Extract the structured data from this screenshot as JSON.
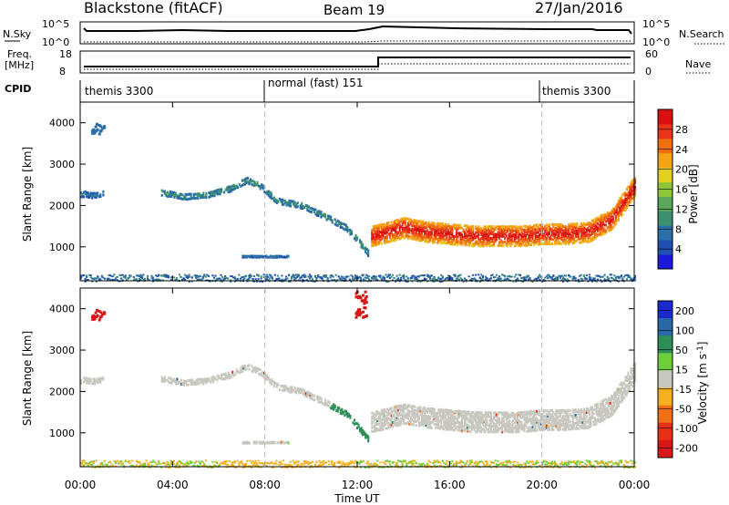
{
  "header": {
    "station": "Blackstone (fitACF)",
    "beam": "Beam 19",
    "date": "27/Jan/2016"
  },
  "noise_panel": {
    "left_label": "N.Sky",
    "left_ticks": [
      "10^5",
      "10^0"
    ],
    "right_label": "N.Search",
    "right_ticks": [
      "10^5",
      "10^0"
    ]
  },
  "freq_panel": {
    "left_label_top": "Freq.",
    "left_label_bottom": "[MHz]",
    "left_ticks": [
      "18",
      "8"
    ],
    "right_label": "Nave",
    "right_ticks": [
      "60",
      "0"
    ]
  },
  "cpid": {
    "label": "CPID",
    "segments": [
      {
        "text": "themis 3300",
        "start_hour": 0,
        "end_hour": 8
      },
      {
        "text": "normal (fast) 151",
        "start_hour": 8,
        "end_hour": 20
      },
      {
        "text": "themis 3300",
        "start_hour": 20,
        "end_hour": 24
      }
    ]
  },
  "chart_data": [
    {
      "type": "heatmap",
      "name": "power",
      "ylabel": "Slant Range [km]",
      "ylim": [
        180,
        4500
      ],
      "yticks": [
        1000,
        2000,
        3000,
        4000
      ],
      "xlim": [
        0,
        24
      ],
      "colorbar": {
        "label": "Power [dB]",
        "min": 0,
        "max": 32,
        "ticks": [
          4,
          8,
          12,
          16,
          20,
          24,
          28
        ],
        "tick_labels": [
          "4",
          "8",
          "12",
          "16",
          "20",
          "24",
          "28"
        ],
        "colors": [
          "#1a1ad8",
          "#1f4fb0",
          "#2a6fa8",
          "#3c8f70",
          "#5aa65a",
          "#8fc53a",
          "#e0d020",
          "#f5a415",
          "#f07010",
          "#e83418",
          "#d81010"
        ]
      },
      "echo_bands": [
        {
          "hours": [
            0.0,
            0.2,
            0.5,
            0.8,
            1.0
          ],
          "range_km": [
            2300,
            2320,
            2280,
            2300,
            2350
          ],
          "width_km": 150,
          "power_db": 6
        },
        {
          "hours": [
            3.5,
            4.5,
            5.5,
            6.5,
            7.2,
            7.8,
            8.5,
            9.5,
            10.5,
            11.5,
            12.0,
            12.5
          ],
          "range_km": [
            2350,
            2250,
            2300,
            2450,
            2650,
            2500,
            2150,
            2050,
            1800,
            1500,
            1200,
            850
          ],
          "width_km": 150,
          "power_db": 8
        },
        {
          "hours": [
            12.6,
            13.0,
            14.0,
            15.0,
            16.0,
            17.0,
            18.0,
            19.0,
            20.0,
            21.0,
            22.0,
            23.0,
            23.5,
            24.0
          ],
          "range_km": [
            1300,
            1350,
            1500,
            1400,
            1350,
            1300,
            1300,
            1300,
            1350,
            1350,
            1400,
            1700,
            2100,
            2500
          ],
          "width_km": 500,
          "power_db": 22
        },
        {
          "hours": [
            7.0,
            8.0,
            9.0
          ],
          "range_km": [
            800,
            800,
            800
          ],
          "width_km": 40,
          "power_db": 6
        }
      ],
      "ground_scatter_km": [
        180,
        350
      ]
    },
    {
      "type": "heatmap",
      "name": "velocity",
      "ylabel": "Slant Range [km]",
      "ylim": [
        180,
        4500
      ],
      "yticks": [
        1000,
        2000,
        3000,
        4000
      ],
      "xlim": [
        0,
        24
      ],
      "xticks": [
        0,
        4,
        8,
        12,
        16,
        20,
        24
      ],
      "xtick_labels": [
        "00:00",
        "04:00",
        "08:00",
        "12:00",
        "16:00",
        "20:00",
        "00:00"
      ],
      "xlabel": "Time UT",
      "colorbar": {
        "label": "Velocity [m s^-1]",
        "tick_labels": [
          "200",
          "100",
          "50",
          "15",
          "-15",
          "-50",
          "-100",
          "-200"
        ],
        "colors": [
          "#1a2acc",
          "#2a68a8",
          "#2d8f58",
          "#6fcf3a",
          "#c8c8c0",
          "#f5b020",
          "#f07018",
          "#e53018",
          "#d81818"
        ]
      },
      "velocity_regions": [
        {
          "hours": [
            0,
            24
          ],
          "range_km": [
            180,
            350
          ],
          "velocity_ms": -20
        },
        {
          "hours": [
            12.5,
            23.5
          ],
          "range_km": [
            1000,
            1700
          ],
          "velocity_ms": 0
        },
        {
          "hours": [
            10.8,
            12.6
          ],
          "range_km": [
            800,
            1600
          ],
          "velocity_ms": 40
        },
        {
          "hours": [
            11.9,
            12.4
          ],
          "range_km": [
            3800,
            4500
          ],
          "velocity_ms": -200
        }
      ]
    }
  ]
}
